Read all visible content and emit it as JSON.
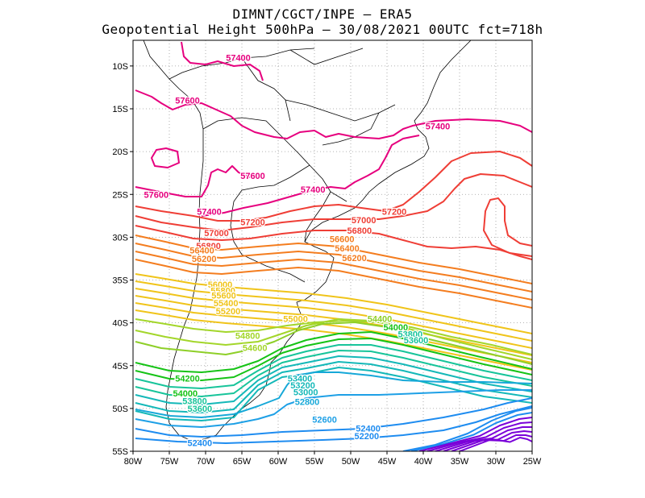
{
  "title": {
    "line1": "DIMNT/CGCT/INPE —  ERA5",
    "line2": "Geopotential Height 500hPa —  30/08/2021 00UTC fct=718h"
  },
  "map": {
    "lon_range": [
      -80,
      -25
    ],
    "lat_range": [
      -55,
      -7
    ],
    "x_ticks": [
      "80W",
      "75W",
      "70W",
      "65W",
      "60W",
      "55W",
      "50W",
      "45W",
      "40W",
      "35W",
      "30W",
      "25W"
    ],
    "y_ticks": [
      "10S",
      "15S",
      "20S",
      "25S",
      "30S",
      "35S",
      "40S",
      "45S",
      "50S",
      "55S"
    ],
    "grid": "dotted"
  },
  "colors": {
    "57600": "#e6007e",
    "57400": "#e6007e",
    "57200": "#ef3e36",
    "57000": "#ef3e36",
    "56800": "#ef3e36",
    "56600": "#f47d1f",
    "56400": "#f47d1f",
    "56200": "#f47d1f",
    "56000": "#f0c41a",
    "55800": "#f0c41a",
    "55600": "#f0c41a",
    "55400": "#f0c41a",
    "55200": "#f0c41a",
    "55000": "#f0c41a",
    "54800": "#a3d62a",
    "54600": "#a3d62a",
    "54400": "#8ecf28",
    "54200": "#16c316",
    "54000": "#16c316",
    "53800": "#17c49a",
    "53600": "#17c49a",
    "53400": "#14b8b8",
    "53200": "#14b8b8",
    "53000": "#14b8b8",
    "52800": "#16a8d8",
    "52600": "#1ea0e6",
    "52400": "#1e8cf0",
    "52200": "#1e8cf0",
    "deep": "#7a00d9"
  },
  "contour_labels": [
    {
      "text": "57400",
      "lon": -65.5,
      "lat": -9.0
    },
    {
      "text": "57600",
      "lon": -72.5,
      "lat": -14.0
    },
    {
      "text": "57400",
      "lon": -38.0,
      "lat": -17.0
    },
    {
      "text": "57600",
      "lon": -63.5,
      "lat": -22.8
    },
    {
      "text": "57600",
      "lon": -76.8,
      "lat": -25.0
    },
    {
      "text": "57400",
      "lon": -55.2,
      "lat": -24.4
    },
    {
      "text": "57400",
      "lon": -69.5,
      "lat": -27.0
    },
    {
      "text": "57200",
      "lon": -44.0,
      "lat": -27.0
    },
    {
      "text": "57200",
      "lon": -63.5,
      "lat": -28.2
    },
    {
      "text": "57000",
      "lon": -48.2,
      "lat": -28.0
    },
    {
      "text": "56800",
      "lon": -48.8,
      "lat": -29.2
    },
    {
      "text": "57000",
      "lon": -68.5,
      "lat": -29.5
    },
    {
      "text": "56600",
      "lon": -51.2,
      "lat": -30.2
    },
    {
      "text": "56800",
      "lon": -69.6,
      "lat": -31.0
    },
    {
      "text": "56400",
      "lon": -50.5,
      "lat": -31.3
    },
    {
      "text": "56400",
      "lon": -70.5,
      "lat": -31.5
    },
    {
      "text": "56200",
      "lon": -49.5,
      "lat": -32.4
    },
    {
      "text": "56200",
      "lon": -70.2,
      "lat": -32.5
    },
    {
      "text": "56000",
      "lon": -68.0,
      "lat": -35.5
    },
    {
      "text": "55800",
      "lon": -67.6,
      "lat": -36.2
    },
    {
      "text": "55600",
      "lon": -67.5,
      "lat": -36.8
    },
    {
      "text": "55400",
      "lon": -67.2,
      "lat": -37.7
    },
    {
      "text": "55200",
      "lon": -66.9,
      "lat": -38.6
    },
    {
      "text": "55000",
      "lon": -57.6,
      "lat": -39.5
    },
    {
      "text": "54400",
      "lon": -46.0,
      "lat": -39.5
    },
    {
      "text": "54000",
      "lon": -43.8,
      "lat": -40.5
    },
    {
      "text": "53800",
      "lon": -41.8,
      "lat": -41.3
    },
    {
      "text": "53600",
      "lon": -41.0,
      "lat": -42.0
    },
    {
      "text": "54800",
      "lon": -64.2,
      "lat": -41.5
    },
    {
      "text": "54600",
      "lon": -63.2,
      "lat": -42.9
    },
    {
      "text": "54200",
      "lon": -72.5,
      "lat": -46.5
    },
    {
      "text": "53400",
      "lon": -57.0,
      "lat": -46.5
    },
    {
      "text": "53200",
      "lon": -56.6,
      "lat": -47.3
    },
    {
      "text": "53000",
      "lon": -56.2,
      "lat": -48.1
    },
    {
      "text": "54000",
      "lon": -72.8,
      "lat": -48.2
    },
    {
      "text": "53800",
      "lon": -71.5,
      "lat": -49.1
    },
    {
      "text": "52800",
      "lon": -56.0,
      "lat": -49.2
    },
    {
      "text": "53600",
      "lon": -70.8,
      "lat": -50.0
    },
    {
      "text": "52600",
      "lon": -53.6,
      "lat": -51.3
    },
    {
      "text": "52400",
      "lon": -47.6,
      "lat": -52.3
    },
    {
      "text": "52200",
      "lon": -47.8,
      "lat": -53.2
    },
    {
      "text": "52400",
      "lon": -70.8,
      "lat": -54.0
    }
  ]
}
